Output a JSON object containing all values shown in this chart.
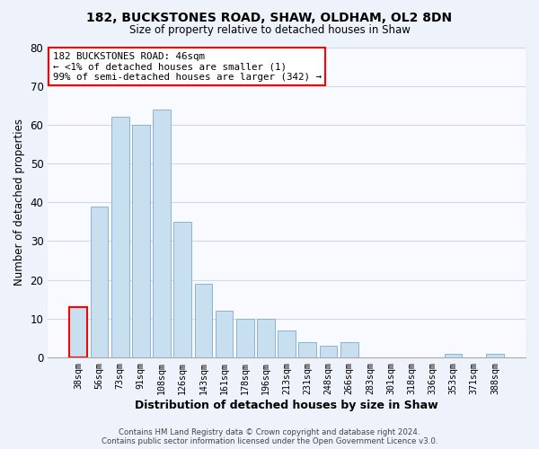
{
  "title1": "182, BUCKSTONES ROAD, SHAW, OLDHAM, OL2 8DN",
  "title2": "Size of property relative to detached houses in Shaw",
  "xlabel": "Distribution of detached houses by size in Shaw",
  "ylabel": "Number of detached properties",
  "bar_labels": [
    "38sqm",
    "56sqm",
    "73sqm",
    "91sqm",
    "108sqm",
    "126sqm",
    "143sqm",
    "161sqm",
    "178sqm",
    "196sqm",
    "213sqm",
    "231sqm",
    "248sqm",
    "266sqm",
    "283sqm",
    "301sqm",
    "318sqm",
    "336sqm",
    "353sqm",
    "371sqm",
    "388sqm"
  ],
  "bar_values": [
    13,
    39,
    62,
    60,
    64,
    35,
    19,
    12,
    10,
    10,
    7,
    4,
    3,
    4,
    0,
    0,
    0,
    0,
    1,
    0,
    1
  ],
  "bar_color": "#c8dff0",
  "bar_edge_color": "#8ab4d4",
  "highlight_bar_index": 0,
  "highlight_edge_color": "#ff0000",
  "ylim": [
    0,
    80
  ],
  "yticks": [
    0,
    10,
    20,
    30,
    40,
    50,
    60,
    70,
    80
  ],
  "annotation_title": "182 BUCKSTONES ROAD: 46sqm",
  "annotation_line1": "← <1% of detached houses are smaller (1)",
  "annotation_line2": "99% of semi-detached houses are larger (342) →",
  "annotation_box_color": "#ffffff",
  "annotation_box_edge": "#ff0000",
  "footer1": "Contains HM Land Registry data © Crown copyright and database right 2024.",
  "footer2": "Contains public sector information licensed under the Open Government Licence v3.0.",
  "bg_color": "#eef2fb",
  "plot_bg_color": "#f8faff",
  "grid_color": "#d0d8ea"
}
